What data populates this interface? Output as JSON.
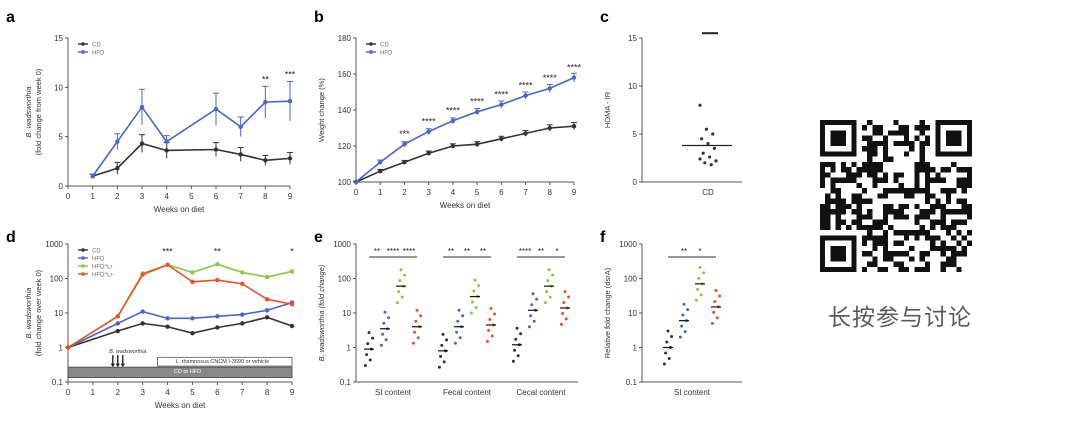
{
  "colors": {
    "cd": "#333333",
    "hfd": "#4a66c9",
    "hfdL": "#8cc63f",
    "hfd2": "#e8502a",
    "axis": "#555555",
    "label": "#333333"
  },
  "panels": {
    "a": {
      "letter": "a"
    },
    "b": {
      "letter": "b"
    },
    "c": {
      "letter": "c"
    },
    "d": {
      "letter": "d"
    },
    "e": {
      "letter": "e"
    },
    "f": {
      "letter": "f"
    }
  },
  "qr": {
    "icon": "qr-code-icon",
    "caption": "长按参与讨论"
  },
  "chart_data": [
    {
      "id": "a",
      "type": "line",
      "ylabel_lines": [
        "B. wadsworthia",
        "(fold change from week 0)"
      ],
      "xlabel": "Weeks on diet",
      "x": [
        1,
        2,
        3,
        4,
        6,
        7,
        8,
        9
      ],
      "xticks": [
        0,
        1,
        2,
        3,
        4,
        5,
        6,
        7,
        8,
        9
      ],
      "ylim": [
        0,
        15
      ],
      "yticks": [
        0,
        5,
        10,
        15
      ],
      "series": [
        {
          "name": "CD",
          "color": "#333333",
          "values": [
            1,
            1.8,
            4.3,
            3.6,
            3.7,
            3.2,
            2.6,
            2.8
          ],
          "err": [
            0.2,
            0.6,
            0.9,
            0.8,
            0.7,
            0.7,
            0.5,
            0.6
          ]
        },
        {
          "name": "HFD",
          "color": "#4a66c9",
          "values": [
            1,
            4.5,
            8,
            4.5,
            7.8,
            6,
            8.5,
            8.6
          ],
          "err": [
            0.2,
            0.8,
            1.8,
            0.6,
            1.6,
            1.0,
            1.6,
            2.0
          ]
        }
      ],
      "annotations": [
        {
          "x": 8,
          "y": 10.5,
          "text": "**"
        },
        {
          "x": 9,
          "y": 11,
          "text": "***"
        }
      ]
    },
    {
      "id": "b",
      "type": "line",
      "ylabel_lines": [
        "Weight change (%)"
      ],
      "xlabel": "Weeks on diet",
      "x": [
        0,
        1,
        2,
        3,
        4,
        5,
        6,
        7,
        8,
        9
      ],
      "xticks": [
        0,
        1,
        2,
        3,
        4,
        5,
        6,
        7,
        8,
        9
      ],
      "ylim": [
        100,
        180
      ],
      "yticks": [
        100,
        120,
        140,
        160,
        180
      ],
      "series": [
        {
          "name": "CD",
          "color": "#333333",
          "values": [
            100,
            106,
            111,
            116,
            120,
            121,
            124,
            127,
            130,
            131
          ],
          "err": [
            0.5,
            1,
            1,
            1.2,
            1.2,
            1.4,
            1.4,
            1.6,
            1.8,
            2
          ]
        },
        {
          "name": "HFD",
          "color": "#4a66c9",
          "values": [
            100,
            111,
            121,
            128,
            134,
            139,
            143,
            148,
            152,
            158
          ],
          "err": [
            0.5,
            1.2,
            1.4,
            1.6,
            1.6,
            1.8,
            2,
            2,
            2.2,
            2.4
          ]
        }
      ],
      "annotations": [
        {
          "x": 2,
          "y": 125,
          "text": "***"
        },
        {
          "x": 3,
          "y": 132,
          "text": "****"
        },
        {
          "x": 4,
          "y": 138,
          "text": "****"
        },
        {
          "x": 5,
          "y": 143,
          "text": "****"
        },
        {
          "x": 6,
          "y": 147,
          "text": "****"
        },
        {
          "x": 7,
          "y": 152,
          "text": "****"
        },
        {
          "x": 8,
          "y": 156,
          "text": "****"
        },
        {
          "x": 9,
          "y": 162,
          "text": "****"
        }
      ]
    },
    {
      "id": "c",
      "type": "scatter",
      "ylabel_lines": [
        "HOMA - IR"
      ],
      "ylim": [
        0,
        15
      ],
      "yticks": [
        0,
        5,
        10,
        15
      ],
      "categories": [
        "CD"
      ],
      "points": [
        8,
        5.5,
        5,
        4.5,
        4,
        3.5,
        3,
        2.6,
        2.2,
        2,
        1.8,
        2.4
      ],
      "mean": 3.8,
      "top_mark": 15.5
    },
    {
      "id": "d",
      "type": "line",
      "ylabel_lines": [
        "B. wadsworthia",
        "(fold change over week 0)"
      ],
      "xlabel": "Weeks on diet",
      "x": [
        0,
        2,
        3,
        4,
        5,
        6,
        7,
        8,
        9
      ],
      "xticks": [
        0,
        1,
        2,
        3,
        4,
        5,
        6,
        7,
        8,
        9
      ],
      "ylog": true,
      "ylim": [
        0.1,
        1000
      ],
      "yticks": [
        0.1,
        1,
        10,
        100,
        1000
      ],
      "yticklabels": [
        "0.1",
        "1",
        "10",
        "100",
        "1000"
      ],
      "series": [
        {
          "name": "CD",
          "color": "#333333",
          "values": [
            1,
            3,
            5,
            4,
            2.6,
            3.8,
            5,
            7.5,
            4.2
          ]
        },
        {
          "name": "HFD",
          "color": "#4a66c9",
          "values": [
            1,
            5,
            11,
            7,
            7,
            8,
            9,
            12,
            20
          ]
        },
        {
          "name": "HFD^Lr",
          "color": "#8cc63f",
          "values": [
            1,
            8,
            140,
            250,
            150,
            260,
            150,
            110,
            160
          ]
        },
        {
          "name": "HFD^Lr-",
          "color": "#e8502a",
          "values": [
            1,
            8,
            130,
            250,
            80,
            90,
            70,
            25,
            18
          ]
        }
      ],
      "annotations": [
        {
          "x": 4,
          "y": 500,
          "text": "***"
        },
        {
          "x": 6,
          "y": 500,
          "text": "**"
        },
        {
          "x": 9,
          "y": 500,
          "text": "*"
        }
      ],
      "timeline_top": "L. rhamnosus CNCM I-3690 or vehicle",
      "timeline_bottom": "CD or HFD",
      "gavage_label": "B. wadsworthia"
    },
    {
      "id": "e",
      "type": "scatter",
      "ylabel_lines": [
        "B. wadsworthia (fold change)"
      ],
      "ylog": true,
      "ylim": [
        0.1,
        1000
      ],
      "yticks": [
        0.1,
        1,
        10,
        100,
        1000
      ],
      "yticklabels": [
        "0.1",
        "1",
        "10",
        "100",
        "1000"
      ],
      "categories": [
        "SI content",
        "Fecal content",
        "Cecal content"
      ],
      "group_colors": [
        "#333333",
        "#4a66c9",
        "#8cc63f",
        "#e8502a"
      ],
      "medians": [
        [
          0.9,
          3.5,
          60,
          4
        ],
        [
          0.8,
          4,
          30,
          4.5
        ],
        [
          1.2,
          12,
          60,
          14
        ]
      ],
      "sig": [
        [
          "**",
          "****",
          "****"
        ],
        [
          "**",
          "**",
          "**"
        ],
        [
          "****",
          "**",
          "*"
        ]
      ]
    },
    {
      "id": "f",
      "type": "scatter",
      "ylabel_lines": [
        "Relative fold change (dsrA)"
      ],
      "ylog": true,
      "ylim": [
        0.1,
        1000
      ],
      "yticks": [
        0.1,
        1,
        10,
        100,
        1000
      ],
      "yticklabels": [
        "0.1",
        "1",
        "10",
        "100",
        "1000"
      ],
      "categories": [
        "SI content"
      ],
      "group_colors": [
        "#333333",
        "#4a66c9",
        "#8cc63f",
        "#e8502a"
      ],
      "medians": [
        1,
        6,
        70,
        15
      ],
      "sig": [
        "**",
        "*"
      ]
    }
  ]
}
